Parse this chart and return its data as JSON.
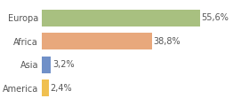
{
  "categories": [
    "America",
    "Asia",
    "Africa",
    "Europa"
  ],
  "values": [
    2.4,
    3.2,
    38.8,
    55.6
  ],
  "labels": [
    "2,4%",
    "3,2%",
    "38,8%",
    "55,6%"
  ],
  "bar_colors": [
    "#f0c050",
    "#7090c8",
    "#e8a87c",
    "#a8c080"
  ],
  "background_color": "#ffffff",
  "xlim": [
    0,
    72
  ],
  "label_fontsize": 7,
  "tick_fontsize": 7,
  "bar_height": 0.72,
  "grid_color": "#dddddd",
  "text_color": "#555555",
  "tick_color": "#555555"
}
